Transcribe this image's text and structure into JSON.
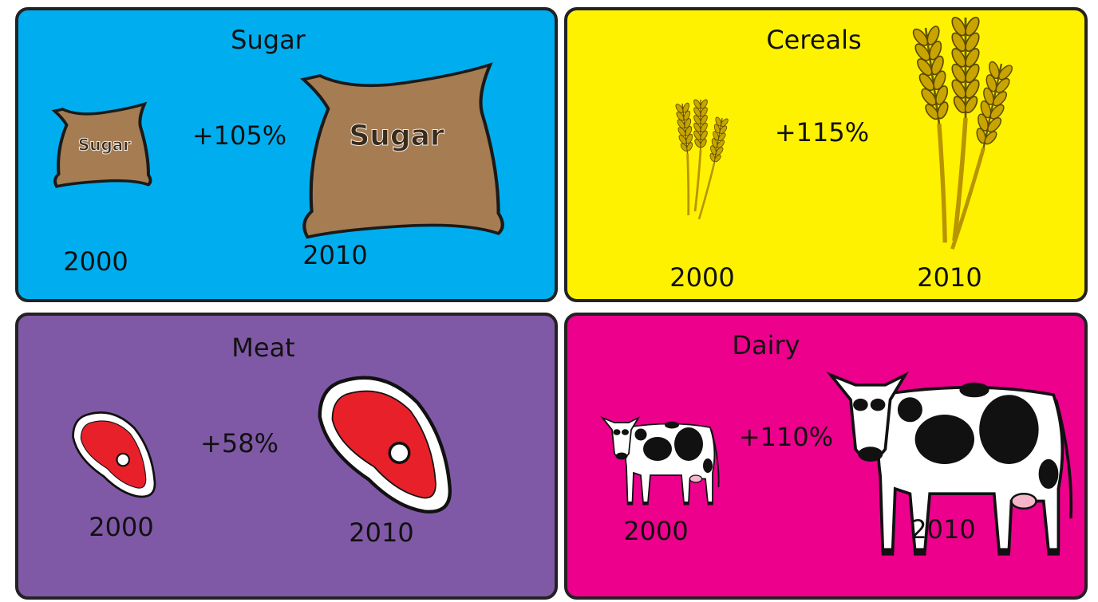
{
  "panels": [
    {
      "title": "Sugar",
      "change": "+105%",
      "years": [
        "2000",
        "2010"
      ],
      "icon_label": "Sugar"
    },
    {
      "title": "Cereals",
      "change": "+115%",
      "years": [
        "2000",
        "2010"
      ]
    },
    {
      "title": "Meat",
      "change": "+58%",
      "years": [
        "2000",
        "2010"
      ]
    },
    {
      "title": "Dairy",
      "change": "+110%",
      "years": [
        "2000",
        "2010"
      ]
    }
  ]
}
